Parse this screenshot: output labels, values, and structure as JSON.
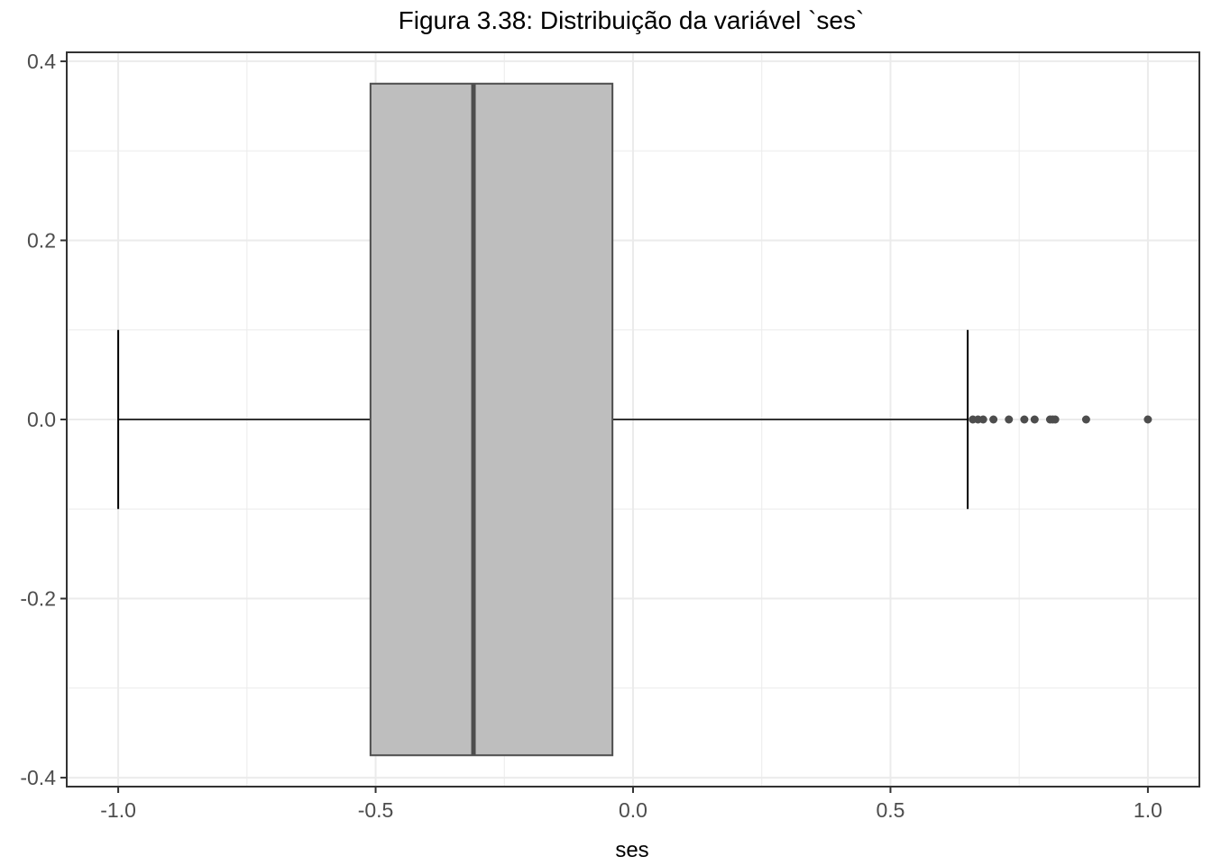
{
  "chart_data": {
    "type": "boxplot",
    "title": "Figura 3.38: Distribuição da variável `ses`",
    "xlabel": "ses",
    "ylabel": "",
    "xlim": [
      -1.1,
      1.1
    ],
    "ylim": [
      -0.41,
      0.41
    ],
    "x_ticks": [
      -1.0,
      -0.5,
      0.0,
      0.5,
      1.0
    ],
    "x_tick_labels": [
      "-1.0",
      "-0.5",
      "0.0",
      "0.5",
      "1.0"
    ],
    "y_ticks": [
      -0.4,
      -0.2,
      0.0,
      0.2,
      0.4
    ],
    "y_tick_labels": [
      "-0.4",
      "-0.2",
      "0.0",
      "0.2",
      "0.4"
    ],
    "grid": true,
    "box": {
      "whisker_low": -1.0,
      "q1": -0.51,
      "median": -0.31,
      "q3": -0.04,
      "whisker_high": 0.65,
      "box_half_height": 0.375,
      "whisker_cap_half_height": 0.1
    },
    "outliers": [
      0.66,
      0.67,
      0.68,
      0.7,
      0.73,
      0.76,
      0.78,
      0.81,
      0.815,
      0.82,
      0.88,
      1.0
    ],
    "colors": {
      "box_fill": "#bebebe",
      "box_stroke": "#4d4d4d",
      "median": "#4d4d4d",
      "outlier": "#4d4d4d",
      "grid": "#ebebeb",
      "panel_border": "#333333"
    }
  }
}
